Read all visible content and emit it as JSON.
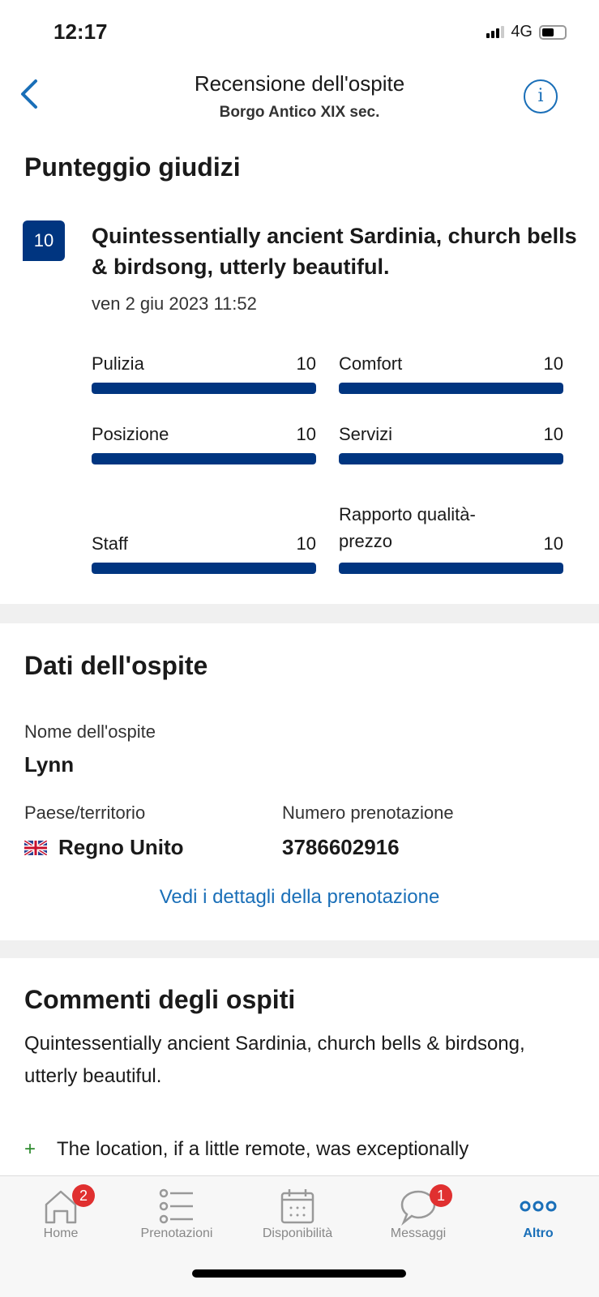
{
  "status": {
    "time": "12:17",
    "network": "4G"
  },
  "header": {
    "title": "Recensione dell'ospite",
    "subtitle": "Borgo Antico XIX sec."
  },
  "scores": {
    "heading": "Punteggio giudizi",
    "overall": "10",
    "review_title": "Quintessentially ancient Sardinia, church bells & birdsong, utterly beautiful.",
    "date": "ven 2 giu 2023 11:52",
    "categories": [
      {
        "label": "Pulizia",
        "value": "10",
        "fraction": 1.0
      },
      {
        "label": "Comfort",
        "value": "10",
        "fraction": 1.0
      },
      {
        "label": "Posizione",
        "value": "10",
        "fraction": 1.0
      },
      {
        "label": "Servizi",
        "value": "10",
        "fraction": 1.0
      },
      {
        "label": "Staff",
        "value": "10",
        "fraction": 1.0
      },
      {
        "label": "Rapporto qualità-prezzo",
        "value": "10",
        "fraction": 1.0
      }
    ]
  },
  "guest": {
    "heading": "Dati dell'ospite",
    "name_label": "Nome dell'ospite",
    "name": "Lynn",
    "country_label": "Paese/territorio",
    "country": "Regno Unito",
    "booking_label": "Numero prenotazione",
    "booking_number": "3786602916",
    "details_link": "Vedi i dettagli della prenotazione"
  },
  "comments": {
    "heading": "Commenti degli ospiti",
    "text": "Quintessentially ancient Sardinia, church bells & birdsong, utterly beautiful.",
    "positive": "The location, if a little remote, was exceptionally"
  },
  "tabs": [
    {
      "label": "Home",
      "badge": "2"
    },
    {
      "label": "Prenotazioni"
    },
    {
      "label": "Disponibilità"
    },
    {
      "label": "Messaggi",
      "badge": "1"
    },
    {
      "label": "Altro",
      "active": true
    }
  ],
  "colors": {
    "brand": "#003580",
    "link": "#1a6fb8",
    "badge": "#e03030"
  }
}
